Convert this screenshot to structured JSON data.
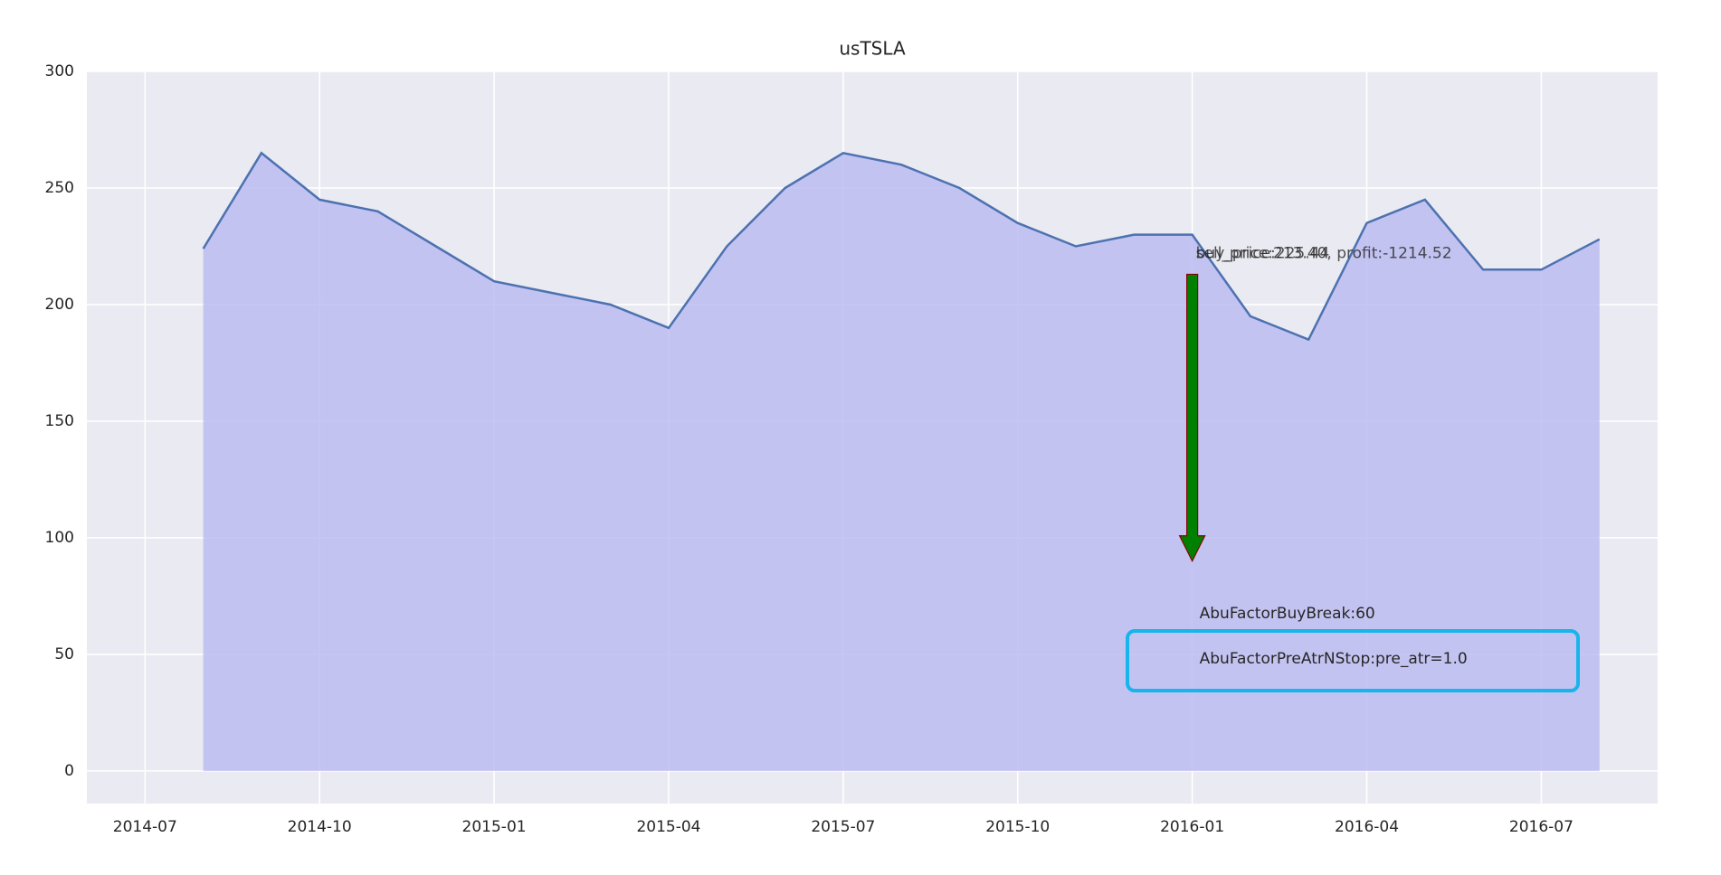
{
  "chart_data": {
    "type": "area_line",
    "title": "usTSLA",
    "x": [
      "2014-08",
      "2014-09",
      "2014-10",
      "2014-11",
      "2014-12",
      "2015-01",
      "2015-02",
      "2015-03",
      "2015-04",
      "2015-05",
      "2015-06",
      "2015-07",
      "2015-08",
      "2015-09",
      "2015-10",
      "2015-11",
      "2015-12",
      "2016-01",
      "2016-02",
      "2016-03",
      "2016-04",
      "2016-05",
      "2016-06",
      "2016-07",
      "2016-08"
    ],
    "values": [
      224,
      265,
      245,
      240,
      225,
      210,
      205,
      200,
      190,
      225,
      250,
      265,
      260,
      250,
      235,
      225,
      230,
      230,
      195,
      185,
      235,
      245,
      215,
      215,
      228
    ],
    "color": "#4c72b0",
    "fill_color": "#bcbcf2",
    "xlim": [
      "2014-06",
      "2016-09"
    ],
    "xticks": [
      "2014-07",
      "2014-10",
      "2015-01",
      "2015-04",
      "2015-07",
      "2015-10",
      "2016-01",
      "2016-04",
      "2016-07"
    ],
    "ylim": [
      -14,
      300
    ],
    "yticks": [
      0,
      50,
      100,
      150,
      200,
      250,
      300
    ],
    "grid": true,
    "arrow": {
      "x": "2016-01",
      "start": 213,
      "end": 90,
      "color": "#008000",
      "edge_color": "#8b0000"
    },
    "annotations": [
      "buy_price:225.44",
      "sell_price:213.40, profit:-1214.52"
    ],
    "factors": [
      "AbuFactorBuyBreak:60",
      "AbuFactorPreAtrNStop:pre_atr=1.0"
    ]
  }
}
